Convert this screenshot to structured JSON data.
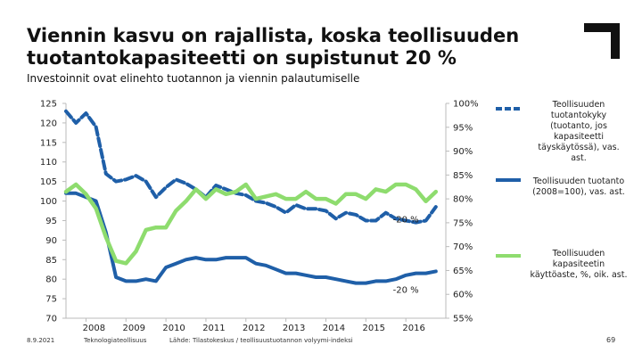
{
  "header": {
    "title": "Viennin kasvu on rajallista, koska teollisuuden tuotantokapasiteetti on supistunut 20 %",
    "subtitle": "Investoinnit ovat elinehto tuotannon ja viennin palautumiselle"
  },
  "footer": {
    "date": "8.9.2021",
    "org": "Teknologiateollisuus",
    "source": "Lähde: Tilastokeskus / teollisuustuotannon volyymi-indeksi",
    "page": "69"
  },
  "colors": {
    "capacity": "#1f5fa8",
    "production": "#1f5fa8",
    "utilization": "#8edc6e",
    "logo": "#111111"
  },
  "icons": {
    "logo": "corner-bracket-logo"
  },
  "chart_data": {
    "type": "line",
    "title": "",
    "y_left": {
      "ticks": [
        "125",
        "120",
        "115",
        "110",
        "105",
        "100",
        "95",
        "90",
        "85",
        "80",
        "75",
        "70"
      ],
      "range": [
        70,
        125
      ]
    },
    "y_right": {
      "ticks": [
        "100%",
        "95%",
        "90%",
        "85%",
        "80%",
        "75%",
        "70%",
        "65%",
        "60%",
        "55%"
      ],
      "range": [
        55,
        100
      ]
    },
    "x_ticks": [
      "2008",
      "2009",
      "2010",
      "2011",
      "2012",
      "2013",
      "2014",
      "2015",
      "2016"
    ],
    "x_range": [
      2007.5,
      2017.0
    ],
    "annotations": [
      {
        "text": "-20 %",
        "x": 2016.0,
        "y": 94.5,
        "axis": "left"
      },
      {
        "text": "-20 %",
        "x": 2016.0,
        "y": 76.5,
        "axis": "left"
      }
    ],
    "series": [
      {
        "name": "Teollisuuden tuotantokyky (tuotanto, jos kapasiteetti täyskäytössä), vas. ast.",
        "axis": "left",
        "style": "dashed",
        "x": [
          2007.5,
          2007.75,
          2008.0,
          2008.25,
          2008.5,
          2008.75,
          2009.0,
          2009.25,
          2009.5,
          2009.75,
          2010.0,
          2010.25,
          2010.5,
          2010.75,
          2011.0,
          2011.25,
          2011.5,
          2011.75,
          2012.0,
          2012.25,
          2012.5,
          2012.75,
          2013.0,
          2013.25,
          2013.5,
          2013.75,
          2014.0,
          2014.25,
          2014.5,
          2014.75,
          2015.0,
          2015.25,
          2015.5,
          2015.75,
          2016.0,
          2016.25,
          2016.5,
          2016.75
        ],
        "y": [
          123,
          120,
          122.5,
          119,
          107,
          105,
          105.5,
          106.5,
          105,
          101,
          103.5,
          105.5,
          104.5,
          103,
          101,
          104,
          103,
          102,
          101.5,
          100,
          99.5,
          98.5,
          97,
          99,
          98,
          98,
          97.5,
          95.5,
          97,
          96.5,
          95,
          95,
          97,
          95.5,
          95,
          94.5,
          95,
          98.5
        ]
      },
      {
        "name": "Teollisuuden tuotanto (2008=100), vas. ast.",
        "axis": "left",
        "style": "solid",
        "x": [
          2007.5,
          2007.75,
          2008.0,
          2008.25,
          2008.5,
          2008.75,
          2009.0,
          2009.25,
          2009.5,
          2009.75,
          2010.0,
          2010.25,
          2010.5,
          2010.75,
          2011.0,
          2011.25,
          2011.5,
          2011.75,
          2012.0,
          2012.25,
          2012.5,
          2012.75,
          2013.0,
          2013.25,
          2013.5,
          2013.75,
          2014.0,
          2014.25,
          2014.5,
          2014.75,
          2015.0,
          2015.25,
          2015.5,
          2015.75,
          2016.0,
          2016.25,
          2016.5,
          2016.75
        ],
        "y": [
          102,
          102,
          101,
          100,
          92,
          80.5,
          79.5,
          79.5,
          80,
          79.5,
          83,
          84,
          85,
          85.5,
          85,
          85,
          85.5,
          85.5,
          85.5,
          84,
          83.5,
          82.5,
          81.5,
          81.5,
          81,
          80.5,
          80.5,
          80,
          79.5,
          79,
          79,
          79.5,
          79.5,
          80,
          81,
          81.5,
          81.5,
          82
        ]
      },
      {
        "name": "Teollisuuden kapasiteetin käyttöaste, %, oik. ast.",
        "axis": "right",
        "style": "solid",
        "x": [
          2007.5,
          2007.75,
          2008.0,
          2008.25,
          2008.5,
          2008.75,
          2009.0,
          2009.25,
          2009.5,
          2009.75,
          2010.0,
          2010.25,
          2010.5,
          2010.75,
          2011.0,
          2011.25,
          2011.5,
          2011.75,
          2012.0,
          2012.25,
          2012.5,
          2012.75,
          2013.0,
          2013.25,
          2013.5,
          2013.75,
          2014.0,
          2014.25,
          2014.5,
          2014.75,
          2015.0,
          2015.25,
          2015.5,
          2015.75,
          2016.0,
          2016.25,
          2016.5,
          2016.75
        ],
        "y": [
          81.5,
          83,
          81,
          78,
          72,
          67,
          66.5,
          69,
          73.5,
          74,
          74,
          77.5,
          79.5,
          82,
          80,
          82,
          81,
          81.5,
          83,
          80,
          80.5,
          81,
          80,
          80,
          81.5,
          80,
          80,
          79,
          81,
          81,
          80,
          82,
          81.5,
          83,
          83,
          82,
          79.5,
          81.5
        ]
      }
    ]
  },
  "legend": [
    {
      "label": "Teollisuuden tuotantokyky (tuotanto, jos kapasiteetti täyskäytössä), vas. ast."
    },
    {
      "label": "Teollisuuden tuotanto (2008=100), vas. ast."
    },
    {
      "label": "Teollisuuden kapasiteetin käyttöaste, %, oik. ast."
    }
  ]
}
